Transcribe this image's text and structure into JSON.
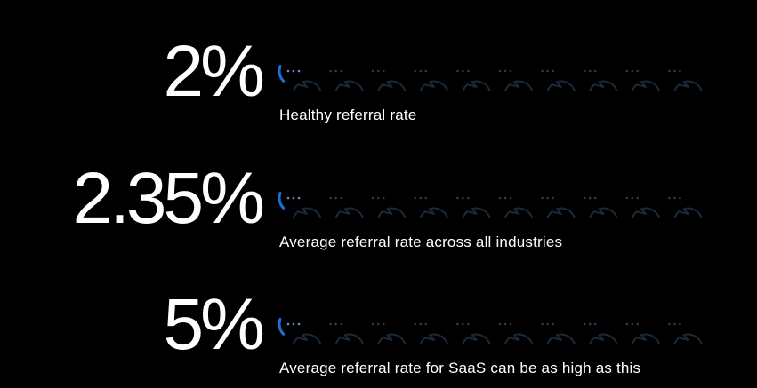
{
  "stats": [
    {
      "value": "2%",
      "label": "Healthy referral rate",
      "fill_fraction": 0.02
    },
    {
      "value": "2.35%",
      "label": "Average referral rate across all industries",
      "fill_fraction": 0.0235
    },
    {
      "value": "5%",
      "label": "Average referral rate for SaaS can be as high as this",
      "fill_fraction": 0.05
    }
  ],
  "bubble_count": 10,
  "colors": {
    "background": "#000000",
    "text": "#ffffff",
    "bubble_outline": "#1a2a3a",
    "bubble_dots": "#2a3b4d",
    "accent": "#1e6fd9"
  },
  "icons": {
    "bubble": "speech-bubble-icon"
  }
}
